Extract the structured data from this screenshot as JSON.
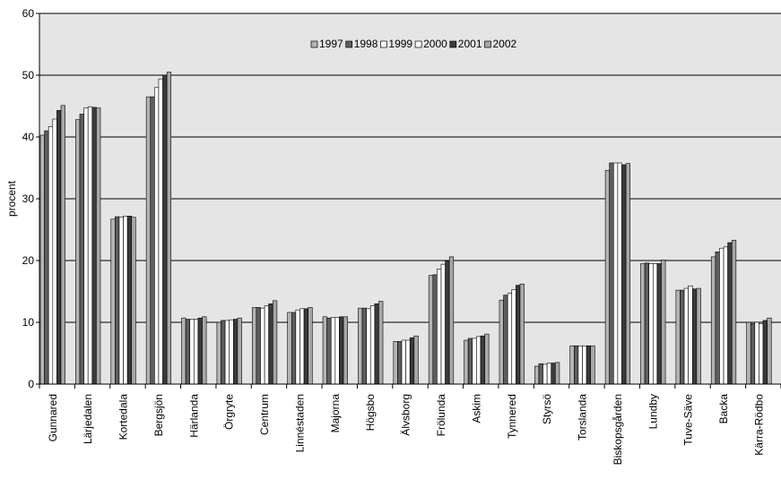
{
  "chart_data": {
    "type": "bar",
    "title": "",
    "xlabel": "",
    "ylabel": "procent",
    "ylim": [
      0,
      60
    ],
    "yticks": [
      "0",
      "10",
      "20",
      "30",
      "40",
      "50",
      "60"
    ],
    "grid": true,
    "legend_position": "top-right",
    "categories": [
      "Gunnared",
      "Lärjedalen",
      "Kortedala",
      "Bergsjön",
      "Härlanda",
      "Örgryte",
      "Centrum",
      "Linnéstaden",
      "Majorna",
      "Högsbo",
      "Älvsborg",
      "Frölunda",
      "Askim",
      "Tynnered",
      "Styrsö",
      "Torslanda",
      "Biskopsgården",
      "Lundby",
      "Tuve-Säve",
      "Backa",
      "Kärra-Rödbo"
    ],
    "series": [
      {
        "name": "1997",
        "color": "#b4b4b4",
        "values": [
          40.3,
          42.8,
          26.7,
          46.5,
          10.7,
          10.0,
          12.4,
          11.6,
          10.9,
          12.3,
          6.9,
          17.6,
          7.1,
          13.6,
          2.9,
          6.2,
          34.6,
          19.5,
          15.2,
          20.6,
          10.0
        ]
      },
      {
        "name": "1998",
        "color": "#5e5e5e",
        "values": [
          41.0,
          43.7,
          27.1,
          46.5,
          10.5,
          10.3,
          12.4,
          11.6,
          10.7,
          12.3,
          6.9,
          17.7,
          7.4,
          14.4,
          3.3,
          6.2,
          35.8,
          19.6,
          15.2,
          21.4,
          9.8
        ]
      },
      {
        "name": "1999",
        "color": "#ffffff",
        "values": [
          41.7,
          44.7,
          27.0,
          48.0,
          10.5,
          10.3,
          12.3,
          12.0,
          10.8,
          12.2,
          7.1,
          18.6,
          7.4,
          14.7,
          3.2,
          6.2,
          35.8,
          19.5,
          15.5,
          22.0,
          10.0
        ]
      },
      {
        "name": "2000",
        "color": "#ffffff",
        "values": [
          42.9,
          44.9,
          27.2,
          49.4,
          10.5,
          10.4,
          12.7,
          12.2,
          10.8,
          12.7,
          7.1,
          19.4,
          7.7,
          15.3,
          3.4,
          6.2,
          35.8,
          19.5,
          15.9,
          22.2,
          9.8
        ]
      },
      {
        "name": "2001",
        "color": "#3a3a3a",
        "values": [
          44.3,
          44.8,
          27.2,
          50.0,
          10.7,
          10.5,
          13.0,
          12.2,
          10.9,
          13.0,
          7.5,
          19.9,
          7.8,
          16.0,
          3.4,
          6.2,
          35.5,
          19.5,
          15.4,
          22.9,
          10.3
        ]
      },
      {
        "name": "2002",
        "color": "#a8a8a8",
        "values": [
          45.1,
          44.7,
          27.0,
          50.5,
          10.9,
          10.7,
          13.5,
          12.4,
          10.9,
          13.4,
          7.8,
          20.6,
          8.1,
          16.2,
          3.5,
          6.2,
          35.7,
          20.1,
          15.5,
          23.3,
          10.7
        ]
      }
    ]
  }
}
